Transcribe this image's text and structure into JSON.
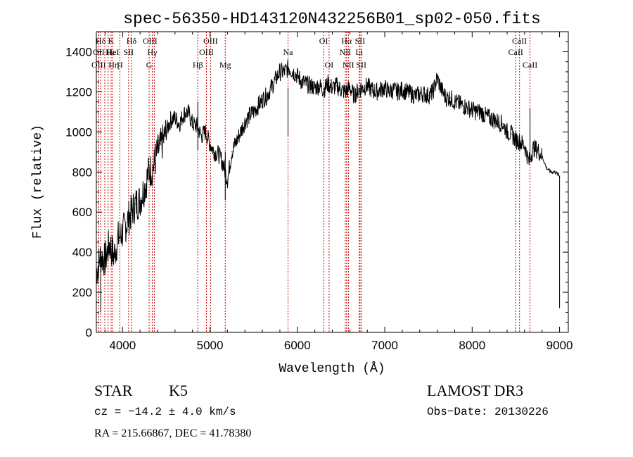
{
  "chart_data": {
    "type": "line",
    "title": "spec-56350-HD143120N432256B01_sp02-050.fits",
    "xlabel": "Wavelength (Å)",
    "ylabel": "Flux (relative)",
    "xlim": [
      3700,
      9100
    ],
    "ylim": [
      0,
      1500
    ],
    "xticks": [
      4000,
      5000,
      6000,
      7000,
      8000,
      9000
    ],
    "yticks": [
      0,
      200,
      400,
      600,
      800,
      1000,
      1200,
      1400
    ],
    "grid": false,
    "series_color": "#000000",
    "line_color": "#cc0000",
    "x": [
      3700,
      3750,
      3800,
      3850,
      3900,
      3950,
      4000,
      4050,
      4100,
      4150,
      4200,
      4250,
      4300,
      4350,
      4400,
      4450,
      4500,
      4550,
      4600,
      4650,
      4700,
      4750,
      4800,
      4850,
      4900,
      4950,
      5000,
      5050,
      5100,
      5150,
      5200,
      5250,
      5300,
      5350,
      5400,
      5450,
      5500,
      5550,
      5600,
      5650,
      5700,
      5750,
      5800,
      5850,
      5900,
      5950,
      6000,
      6050,
      6100,
      6150,
      6200,
      6250,
      6300,
      6350,
      6400,
      6450,
      6500,
      6550,
      6600,
      6650,
      6700,
      6750,
      6800,
      6850,
      6900,
      6950,
      7000,
      7050,
      7100,
      7150,
      7200,
      7250,
      7300,
      7350,
      7400,
      7450,
      7500,
      7550,
      7600,
      7650,
      7700,
      7750,
      7800,
      7850,
      7900,
      7950,
      8000,
      8050,
      8100,
      8150,
      8200,
      8250,
      8300,
      8350,
      8400,
      8450,
      8500,
      8550,
      8600,
      8650,
      8700,
      8750,
      8800,
      8850,
      8900,
      8950,
      9000
    ],
    "y": [
      300,
      380,
      360,
      440,
      380,
      470,
      500,
      550,
      600,
      640,
      660,
      720,
      800,
      820,
      900,
      940,
      1000,
      1060,
      1070,
      1040,
      1090,
      1100,
      1040,
      1030,
      980,
      1000,
      940,
      900,
      890,
      840,
      760,
      900,
      950,
      1000,
      1050,
      1080,
      1100,
      1130,
      1160,
      1180,
      1220,
      1260,
      1300,
      1300,
      1320,
      1300,
      1280,
      1250,
      1240,
      1230,
      1220,
      1230,
      1210,
      1240,
      1220,
      1230,
      1210,
      1200,
      1220,
      1180,
      1210,
      1220,
      1230,
      1210,
      1200,
      1210,
      1220,
      1200,
      1210,
      1200,
      1210,
      1200,
      1190,
      1180,
      1190,
      1190,
      1180,
      1200,
      1270,
      1210,
      1170,
      1170,
      1150,
      1140,
      1130,
      1120,
      1110,
      1100,
      1100,
      1080,
      1070,
      1060,
      1050,
      1040,
      1000,
      990,
      960,
      950,
      930,
      850,
      920,
      910,
      880,
      820,
      800,
      800,
      780
    ],
    "lines": [
      {
        "label": "Hδ",
        "x": 3750,
        "row": 0,
        "dx": 0
      },
      {
        "label": "OII",
        "x": 3727,
        "row": 1,
        "dx": 0
      },
      {
        "label": "OIII",
        "x": 3727,
        "row": 2,
        "dx": 0
      },
      {
        "label": "Hε",
        "x": 3797,
        "row": 1,
        "dx": 8
      },
      {
        "label": "Hη",
        "x": 3835,
        "row": 2,
        "dx": 8
      },
      {
        "label": "K",
        "x": 3869,
        "row": 0,
        "dx": 0
      },
      {
        "label": "HeI",
        "x": 3889,
        "row": 1,
        "dx": 0
      },
      {
        "label": "H",
        "x": 3969,
        "row": 2,
        "dx": 0
      },
      {
        "label": "SII",
        "x": 4069,
        "row": 1,
        "dx": 0
      },
      {
        "label": "Hδ",
        "x": 4102,
        "row": 0,
        "dx": 0
      },
      {
        "label": "OIII",
        "x": 4363,
        "row": 0,
        "dx": -6
      },
      {
        "label": "Hγ",
        "x": 4340,
        "row": 1,
        "dx": 0
      },
      {
        "label": "G",
        "x": 4304,
        "row": 2,
        "dx": 0
      },
      {
        "label": "Hβ",
        "x": 4861,
        "row": 2,
        "dx": 0
      },
      {
        "label": "OIII",
        "x": 5007,
        "row": 0,
        "dx": 0
      },
      {
        "label": "OIII",
        "x": 4959,
        "row": 1,
        "dx": 0
      },
      {
        "label": "Mg",
        "x": 5175,
        "row": 2,
        "dx": 0
      },
      {
        "label": "Na",
        "x": 5893,
        "row": 1,
        "dx": 0
      },
      {
        "label": "OI",
        "x": 6300,
        "row": 0,
        "dx": 0
      },
      {
        "label": "OI",
        "x": 6363,
        "row": 2,
        "dx": 0
      },
      {
        "label": "Hα",
        "x": 6563,
        "row": 0,
        "dx": 0
      },
      {
        "label": "NII",
        "x": 6548,
        "row": 1,
        "dx": 0
      },
      {
        "label": "NII",
        "x": 6584,
        "row": 2,
        "dx": 0
      },
      {
        "label": "SII",
        "x": 6717,
        "row": 0,
        "dx": 0
      },
      {
        "label": "Li",
        "x": 6708,
        "row": 1,
        "dx": 0
      },
      {
        "label": "SII",
        "x": 6731,
        "row": 2,
        "dx": 0
      },
      {
        "label": "CaII",
        "x": 8542,
        "row": 0,
        "dx": 0
      },
      {
        "label": "CaII",
        "x": 8498,
        "row": 1,
        "dx": 0
      },
      {
        "label": "CaII",
        "x": 8662,
        "row": 2,
        "dx": 0
      }
    ]
  },
  "info": {
    "class": "STAR",
    "subclass": "K5",
    "survey": "LAMOST DR3",
    "cz": "cz = −14.2 ± 4.0 km/s",
    "obs_date": "Obs−Date: 20130226",
    "coords": "RA = 215.66867, DEC =  41.78380"
  }
}
